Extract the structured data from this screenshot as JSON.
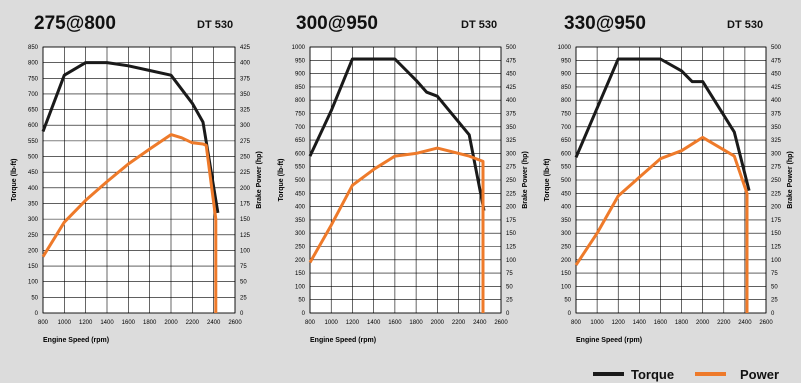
{
  "colors": {
    "torque": "#1a1a1a",
    "power": "#ee7a2a",
    "background": "#dcdcdc",
    "plot": "#ffffff"
  },
  "legend": {
    "torque_label": "Torque",
    "power_label": "Power",
    "placement": "bottom-right"
  },
  "chart_data": [
    {
      "type": "line",
      "title": "275@800",
      "model": "DT 530",
      "xlabel": "Engine Speed (rpm)",
      "ylabel_left": "Torque (lb-ft)",
      "ylabel_right": "Brake Power (hp)",
      "xlim": [
        800,
        2600
      ],
      "xticks": [
        "800",
        "1000",
        "1200",
        "1400",
        "1600",
        "1800",
        "2000",
        "2200",
        "2400",
        "2600"
      ],
      "ylim_left": [
        0,
        850
      ],
      "yticks_left": [
        "0",
        "50",
        "100",
        "150",
        "200",
        "250",
        "300",
        "350",
        "400",
        "450",
        "500",
        "550",
        "600",
        "650",
        "700",
        "750",
        "800",
        "850"
      ],
      "ylim_right": [
        0,
        425
      ],
      "yticks_right": [
        "0",
        "25",
        "50",
        "75",
        "100",
        "125",
        "150",
        "175",
        "200",
        "225",
        "250",
        "275",
        "300",
        "325",
        "350",
        "375",
        "400",
        "425"
      ],
      "grid": true,
      "series": [
        {
          "name": "Torque",
          "axis": "left",
          "x": [
            800,
            1000,
            1200,
            1400,
            1600,
            1800,
            2000,
            2200,
            2300,
            2440
          ],
          "y": [
            580,
            760,
            800,
            800,
            790,
            775,
            760,
            670,
            610,
            320
          ]
        },
        {
          "name": "Power",
          "axis": "right",
          "x": [
            800,
            1000,
            1200,
            1400,
            1600,
            1800,
            2000,
            2100,
            2200,
            2300,
            2330,
            2420,
            2420,
            2420
          ],
          "y": [
            90,
            145,
            180,
            210,
            238,
            262,
            285,
            280,
            272,
            270,
            268,
            150,
            60,
            0
          ]
        }
      ]
    },
    {
      "type": "line",
      "title": "300@950",
      "model": "DT 530",
      "xlabel": "Engine Speed (rpm)",
      "ylabel_left": "Torque (lb-ft)",
      "ylabel_right": "Brake Power (hp)",
      "xlim": [
        800,
        2600
      ],
      "xticks": [
        "800",
        "1000",
        "1200",
        "1400",
        "1600",
        "1800",
        "2000",
        "2200",
        "2400",
        "2600"
      ],
      "ylim_left": [
        0,
        1000
      ],
      "yticks_left": [
        "0",
        "50",
        "100",
        "150",
        "200",
        "250",
        "300",
        "350",
        "400",
        "450",
        "500",
        "550",
        "600",
        "650",
        "700",
        "750",
        "800",
        "850",
        "900",
        "950",
        "1000"
      ],
      "ylim_right": [
        0,
        500
      ],
      "yticks_right": [
        "0",
        "25",
        "50",
        "75",
        "100",
        "125",
        "150",
        "175",
        "200",
        "225",
        "250",
        "275",
        "300",
        "325",
        "350",
        "375",
        "400",
        "425",
        "450",
        "475",
        "500"
      ],
      "grid": true,
      "series": [
        {
          "name": "Torque",
          "axis": "left",
          "x": [
            800,
            1000,
            1200,
            1400,
            1600,
            1800,
            1900,
            2000,
            2300,
            2440
          ],
          "y": [
            590,
            760,
            955,
            955,
            955,
            875,
            830,
            815,
            670,
            385
          ]
        },
        {
          "name": "Power",
          "axis": "right",
          "x": [
            800,
            1000,
            1200,
            1400,
            1600,
            1800,
            2000,
            2300,
            2430,
            2430
          ],
          "y": [
            95,
            165,
            240,
            270,
            295,
            300,
            310,
            295,
            285,
            0
          ]
        }
      ]
    },
    {
      "type": "line",
      "title": "330@950",
      "model": "DT 530",
      "xlabel": "Engine Speed (rpm)",
      "ylabel_left": "Torque (lb-ft)",
      "ylabel_right": "Brake Power (hp)",
      "xlim": [
        800,
        2600
      ],
      "xticks": [
        "800",
        "1000",
        "1200",
        "1400",
        "1600",
        "1800",
        "2000",
        "2200",
        "2400",
        "2600"
      ],
      "ylim_left": [
        0,
        1000
      ],
      "yticks_left": [
        "0",
        "50",
        "100",
        "150",
        "200",
        "250",
        "300",
        "350",
        "400",
        "450",
        "500",
        "550",
        "600",
        "650",
        "700",
        "750",
        "800",
        "850",
        "900",
        "950",
        "1000"
      ],
      "ylim_right": [
        0,
        500
      ],
      "yticks_right": [
        "0",
        "25",
        "50",
        "75",
        "100",
        "125",
        "150",
        "175",
        "200",
        "225",
        "250",
        "275",
        "300",
        "325",
        "350",
        "375",
        "400",
        "425",
        "450",
        "475",
        "500"
      ],
      "grid": true,
      "series": [
        {
          "name": "Torque",
          "axis": "left",
          "x": [
            800,
            1000,
            1200,
            1400,
            1600,
            1800,
            1900,
            2000,
            2300,
            2440
          ],
          "y": [
            585,
            770,
            955,
            955,
            955,
            910,
            870,
            870,
            680,
            460
          ]
        },
        {
          "name": "Power",
          "axis": "right",
          "x": [
            800,
            1000,
            1200,
            1400,
            1600,
            1800,
            2000,
            2300,
            2420,
            2420
          ],
          "y": [
            90,
            150,
            220,
            255,
            290,
            305,
            330,
            295,
            225,
            0
          ]
        }
      ]
    }
  ]
}
